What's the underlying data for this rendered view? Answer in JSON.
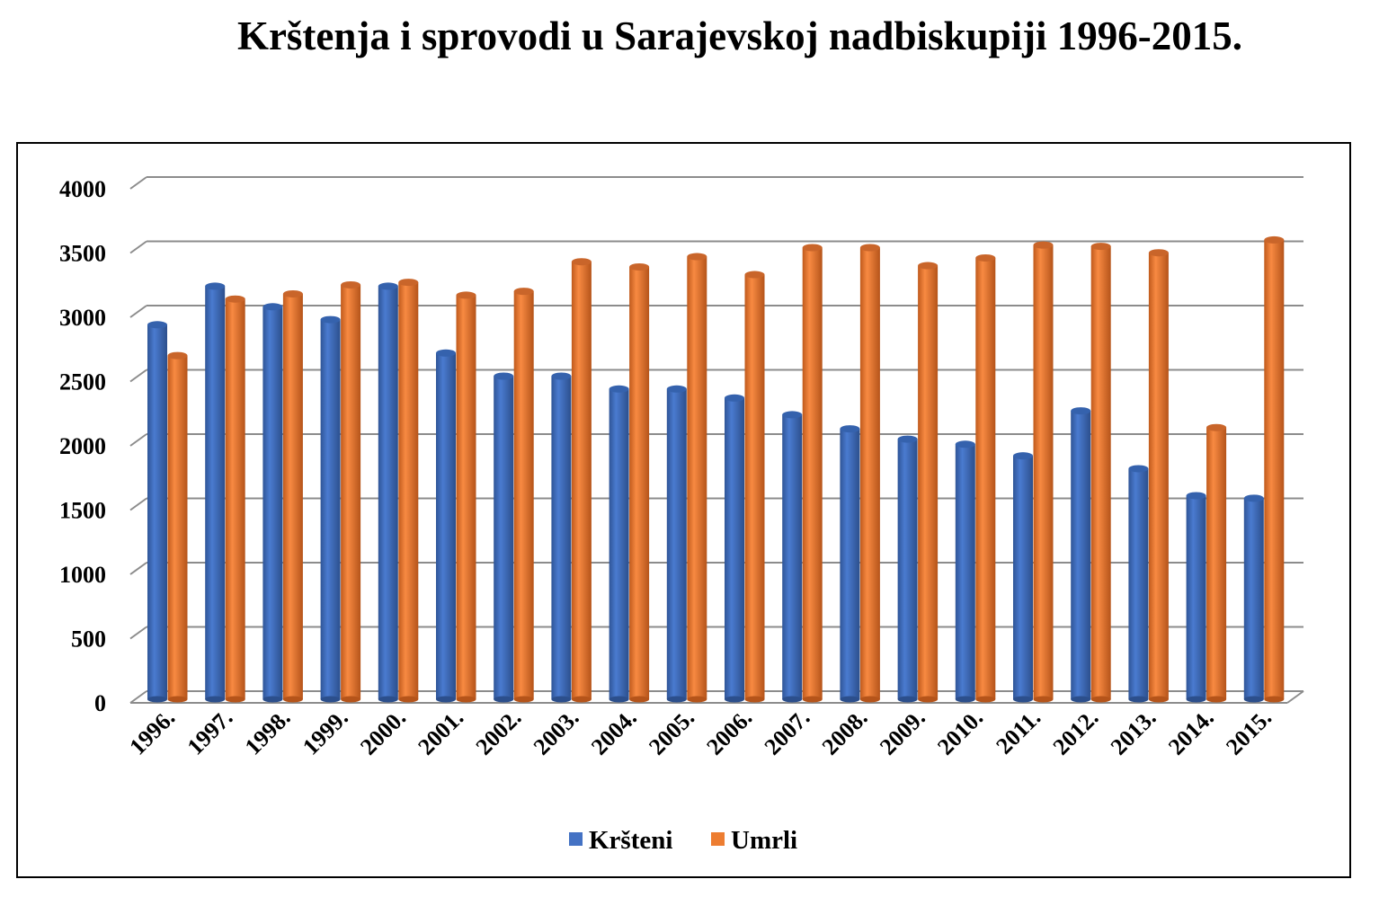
{
  "chart_data": {
    "type": "bar",
    "title": "Krštenja i sprovodi u Sarajevskoj nadbiskupiji 1996-2015.",
    "xlabel": "",
    "ylabel": "",
    "ylim": [
      0,
      4000
    ],
    "yticks": [
      "0",
      "500",
      "1000",
      "1500",
      "2000",
      "2500",
      "3000",
      "3500",
      "4000"
    ],
    "grid": true,
    "legend_position": "bottom",
    "categories": [
      "1996.",
      "1997.",
      "1998.",
      "1999.",
      "2000.",
      "2001.",
      "2002.",
      "2003.",
      "2004.",
      "2005.",
      "2006.",
      "2007.",
      "2008.",
      "2009.",
      "2010.",
      "2011.",
      "2012.",
      "2013.",
      "2014.",
      "2015."
    ],
    "series": [
      {
        "name": "Kršteni",
        "color": "#4472C4",
        "values": [
          2900,
          3200,
          3040,
          2940,
          3200,
          2680,
          2500,
          2500,
          2400,
          2400,
          2330,
          2200,
          2090,
          2010,
          1970,
          1880,
          2230,
          1780,
          1570,
          1550
        ]
      },
      {
        "name": "Umrli",
        "color": "#ED7D31",
        "values": [
          2660,
          3100,
          3140,
          3210,
          3230,
          3130,
          3160,
          3390,
          3350,
          3430,
          3290,
          3500,
          3500,
          3360,
          3420,
          3520,
          3510,
          3460,
          2100,
          3560
        ]
      }
    ]
  }
}
